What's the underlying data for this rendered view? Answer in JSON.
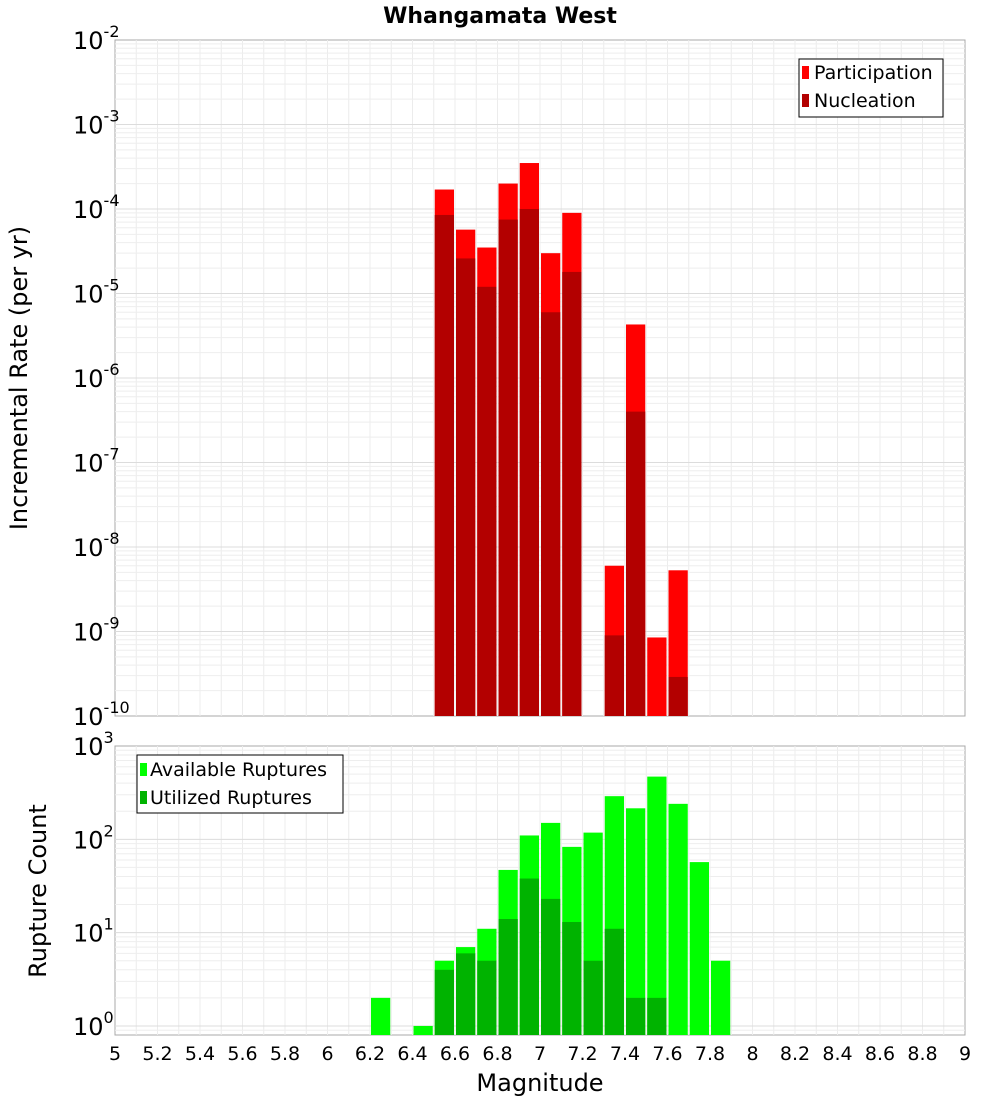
{
  "chart_data": [
    {
      "type": "bar",
      "title": "Whangamata West",
      "xlabel": "Magnitude",
      "ylabel": "Incremental Rate (per yr)",
      "yscale": "log",
      "ylim": [
        1e-10,
        0.01
      ],
      "xlim": [
        5,
        9
      ],
      "bin_width": 0.1,
      "y_ticks": [
        {
          "base": "10",
          "exp": "-10"
        },
        {
          "base": "10",
          "exp": "-9"
        },
        {
          "base": "10",
          "exp": "-8"
        },
        {
          "base": "10",
          "exp": "-7"
        },
        {
          "base": "10",
          "exp": "-6"
        },
        {
          "base": "10",
          "exp": "-5"
        },
        {
          "base": "10",
          "exp": "-4"
        },
        {
          "base": "10",
          "exp": "-3"
        },
        {
          "base": "10",
          "exp": "-2"
        }
      ],
      "legend_position": "top-right",
      "series": [
        {
          "name": "Participation",
          "color": "#ff0000",
          "x": [
            6.55,
            6.65,
            6.75,
            6.85,
            6.95,
            7.05,
            7.15,
            7.35,
            7.45,
            7.55,
            7.65
          ],
          "values": [
            0.00017,
            5.7e-05,
            3.5e-05,
            0.0002,
            0.00035,
            3e-05,
            9e-05,
            6e-09,
            4.3e-06,
            8.5e-10,
            5.3e-09
          ]
        },
        {
          "name": "Nucleation",
          "color": "#b30000",
          "x": [
            6.55,
            6.65,
            6.75,
            6.85,
            6.95,
            7.05,
            7.15,
            7.35,
            7.45,
            7.65
          ],
          "values": [
            8.5e-05,
            2.6e-05,
            1.2e-05,
            7.5e-05,
            0.0001,
            6e-06,
            1.8e-05,
            9e-10,
            4e-07,
            2.9e-10
          ]
        }
      ]
    },
    {
      "type": "bar",
      "xlabel": "Magnitude",
      "ylabel": "Rupture Count",
      "yscale": "log",
      "ylim": [
        0.8,
        1000
      ],
      "xlim": [
        5,
        9
      ],
      "bin_width": 0.1,
      "x_ticks": [
        "5",
        "5.2",
        "5.4",
        "5.6",
        "5.8",
        "6",
        "6.2",
        "6.4",
        "6.6",
        "6.8",
        "7",
        "7.2",
        "7.4",
        "7.6",
        "7.8",
        "8",
        "8.2",
        "8.4",
        "8.6",
        "8.8",
        "9"
      ],
      "y_ticks": [
        {
          "base": "10",
          "exp": "0"
        },
        {
          "base": "10",
          "exp": "1"
        },
        {
          "base": "10",
          "exp": "2"
        },
        {
          "base": "10",
          "exp": "3"
        }
      ],
      "legend_position": "top-left",
      "series": [
        {
          "name": "Available Ruptures",
          "color": "#00ff00",
          "x": [
            6.25,
            6.45,
            6.55,
            6.65,
            6.75,
            6.85,
            6.95,
            7.05,
            7.15,
            7.25,
            7.35,
            7.45,
            7.55,
            7.65,
            7.75,
            7.85
          ],
          "values": [
            2,
            1,
            5,
            7,
            11,
            47,
            110,
            150,
            83,
            118,
            290,
            215,
            470,
            240,
            57,
            5
          ]
        },
        {
          "name": "Utilized Ruptures",
          "color": "#00b300",
          "x": [
            6.55,
            6.65,
            6.75,
            6.85,
            6.95,
            7.05,
            7.15,
            7.25,
            7.35,
            7.45,
            7.55
          ],
          "values": [
            4,
            6,
            5,
            14,
            38,
            23,
            13,
            5,
            11,
            2,
            2
          ]
        }
      ]
    }
  ]
}
